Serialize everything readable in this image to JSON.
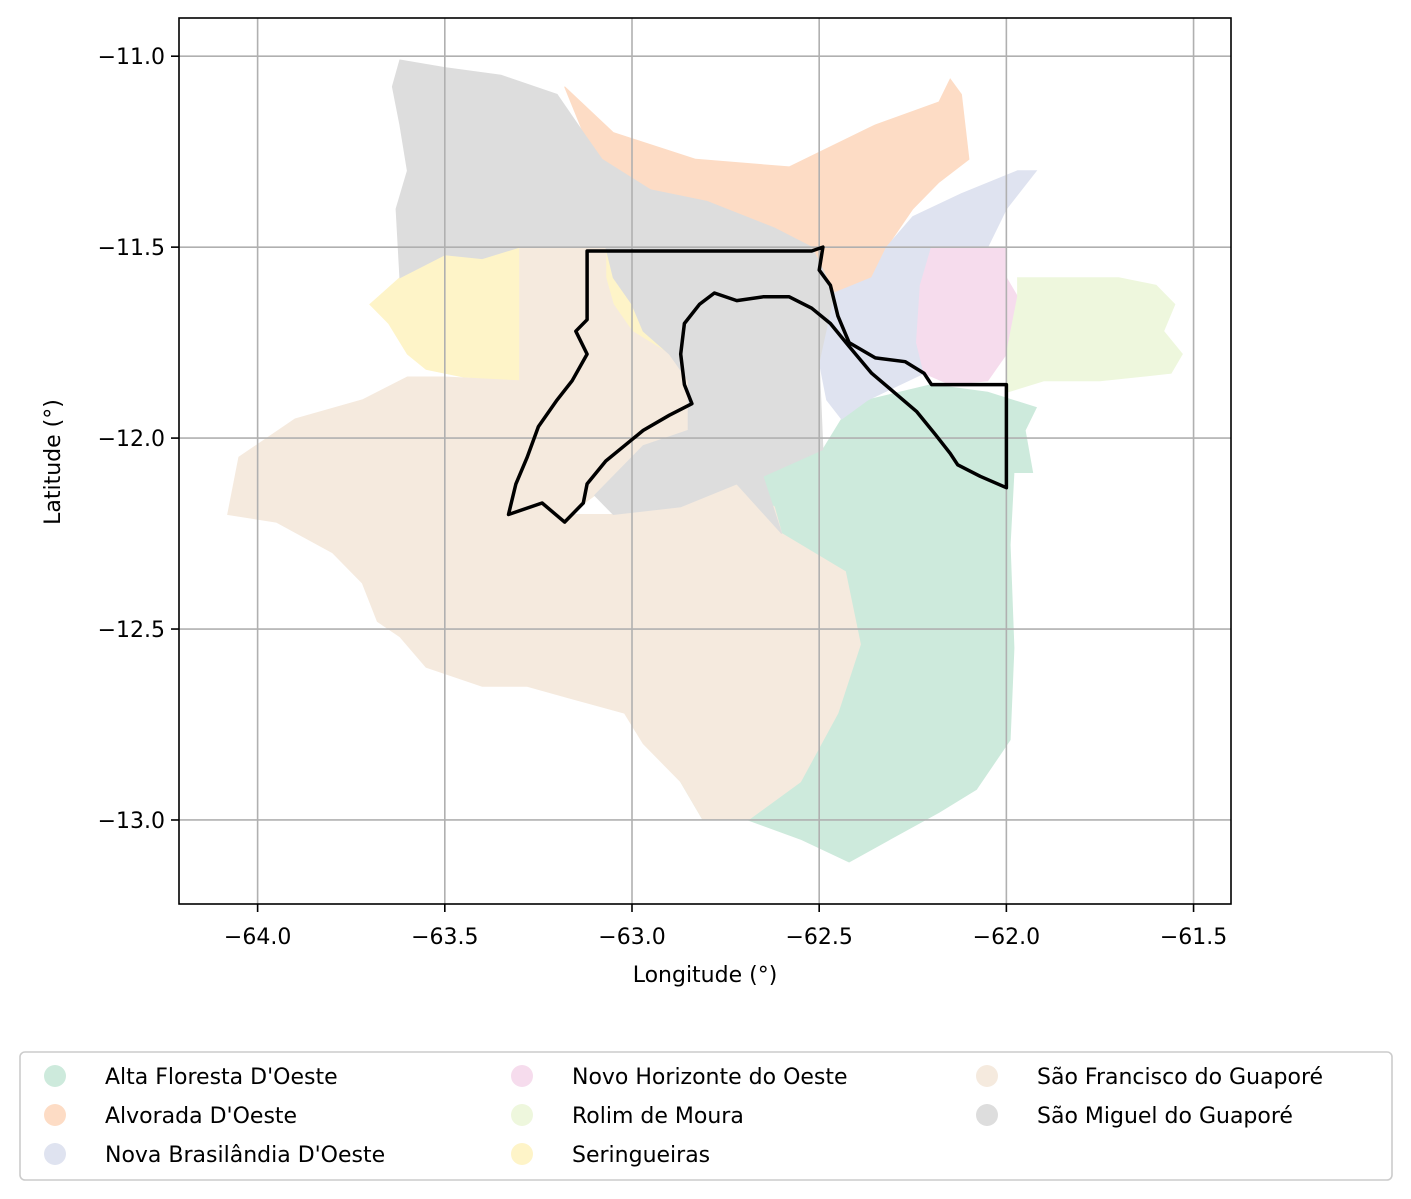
{
  "map": {
    "xlabel": "Longitude (°)",
    "ylabel": "Latitude (°)",
    "xlim": [
      -64.21,
      -61.4
    ],
    "ylim": [
      -13.22,
      -10.9
    ],
    "x_ticks": [
      -64.0,
      -63.5,
      -63.0,
      -62.5,
      -62.0,
      -61.5
    ],
    "x_tick_labels": [
      "−64.0",
      "−63.5",
      "−63.0",
      "−62.5",
      "−62.0",
      "−61.5"
    ],
    "y_ticks": [
      -11.0,
      -11.5,
      -12.0,
      -12.5,
      -13.0
    ],
    "y_tick_labels": [
      "−11.0",
      "−11.5",
      "−12.0",
      "−12.5",
      "−13.0"
    ],
    "grid": true,
    "legend_position": "bottom, below plot, 3 columns",
    "regions": [
      {
        "name": "Alta Floresta D'Oeste",
        "color": "#cdeadc",
        "boundary": [
          [
            -62.37,
            -11.9
          ],
          [
            -62.2,
            -11.86
          ],
          [
            -62.05,
            -11.88
          ],
          [
            -61.92,
            -11.92
          ],
          [
            -61.95,
            -11.98
          ],
          [
            -61.93,
            -12.09
          ],
          [
            -61.98,
            -12.09
          ],
          [
            -61.99,
            -12.28
          ],
          [
            -61.98,
            -12.55
          ],
          [
            -61.99,
            -12.79
          ],
          [
            -62.08,
            -12.92
          ],
          [
            -62.18,
            -12.98
          ],
          [
            -62.31,
            -13.05
          ],
          [
            -62.42,
            -13.11
          ],
          [
            -62.55,
            -13.05
          ],
          [
            -62.69,
            -13.0
          ],
          [
            -62.81,
            -13.0
          ],
          [
            -62.87,
            -12.9
          ],
          [
            -62.8,
            -12.85
          ],
          [
            -62.68,
            -12.8
          ],
          [
            -62.55,
            -12.72
          ],
          [
            -62.45,
            -12.65
          ],
          [
            -62.39,
            -12.54
          ],
          [
            -62.43,
            -12.35
          ],
          [
            -62.6,
            -12.25
          ],
          [
            -62.65,
            -12.1
          ],
          [
            -62.49,
            -12.03
          ],
          [
            -62.44,
            -11.95
          ]
        ]
      },
      {
        "name": "Alvorada D'Oeste",
        "color": "#fddcc5",
        "boundary": [
          [
            -63.18,
            -11.08
          ],
          [
            -63.05,
            -11.2
          ],
          [
            -62.83,
            -11.27
          ],
          [
            -62.58,
            -11.29
          ],
          [
            -62.35,
            -11.18
          ],
          [
            -62.18,
            -11.12
          ],
          [
            -62.15,
            -11.06
          ],
          [
            -62.12,
            -11.1
          ],
          [
            -62.1,
            -11.27
          ],
          [
            -62.18,
            -11.33
          ],
          [
            -62.25,
            -11.4
          ],
          [
            -62.32,
            -11.5
          ],
          [
            -62.36,
            -11.58
          ],
          [
            -62.46,
            -11.62
          ],
          [
            -62.52,
            -11.5
          ],
          [
            -62.62,
            -11.45
          ],
          [
            -62.8,
            -11.38
          ],
          [
            -62.95,
            -11.35
          ],
          [
            -63.08,
            -11.27
          ],
          [
            -63.13,
            -11.2
          ]
        ]
      },
      {
        "name": "Nova Brasilândia D'Oeste",
        "color": "#dfe3f0",
        "boundary": [
          [
            -62.46,
            -11.62
          ],
          [
            -62.36,
            -11.58
          ],
          [
            -62.32,
            -11.5
          ],
          [
            -62.25,
            -11.42
          ],
          [
            -62.12,
            -11.36
          ],
          [
            -61.97,
            -11.3
          ],
          [
            -61.92,
            -11.3
          ],
          [
            -62.0,
            -11.4
          ],
          [
            -62.05,
            -11.5
          ],
          [
            -62.2,
            -11.5
          ],
          [
            -62.23,
            -11.6
          ],
          [
            -62.2,
            -11.7
          ],
          [
            -62.24,
            -11.75
          ],
          [
            -62.22,
            -11.83
          ],
          [
            -62.37,
            -11.9
          ],
          [
            -62.44,
            -11.95
          ],
          [
            -62.48,
            -11.9
          ],
          [
            -62.5,
            -11.8
          ],
          [
            -62.52,
            -11.7
          ]
        ]
      },
      {
        "name": "Novo Horizonte do Oeste",
        "color": "#f6dced",
        "boundary": [
          [
            -62.2,
            -11.5
          ],
          [
            -62.0,
            -11.5
          ],
          [
            -62.0,
            -11.58
          ],
          [
            -61.97,
            -11.63
          ],
          [
            -62.0,
            -11.78
          ],
          [
            -62.05,
            -11.85
          ],
          [
            -62.15,
            -11.86
          ],
          [
            -62.22,
            -11.83
          ],
          [
            -62.24,
            -11.75
          ],
          [
            -62.23,
            -11.6
          ]
        ]
      },
      {
        "name": "Rolim de Moura",
        "color": "#eef7dd",
        "boundary": [
          [
            -61.97,
            -11.58
          ],
          [
            -61.7,
            -11.58
          ],
          [
            -61.6,
            -11.6
          ],
          [
            -61.55,
            -11.65
          ],
          [
            -61.58,
            -11.72
          ],
          [
            -61.53,
            -11.78
          ],
          [
            -61.56,
            -11.83
          ],
          [
            -61.75,
            -11.85
          ],
          [
            -61.9,
            -11.85
          ],
          [
            -62.0,
            -11.88
          ],
          [
            -62.0,
            -11.78
          ],
          [
            -61.97,
            -11.63
          ]
        ]
      },
      {
        "name": "Seringueiras",
        "color": "#fef4c8",
        "boundary": [
          [
            -63.2,
            -11.5
          ],
          [
            -63.07,
            -11.5
          ],
          [
            -63.05,
            -11.58
          ],
          [
            -63.0,
            -11.65
          ],
          [
            -62.97,
            -11.72
          ],
          [
            -62.9,
            -11.78
          ],
          [
            -62.85,
            -11.85
          ],
          [
            -62.85,
            -11.98
          ],
          [
            -62.97,
            -12.02
          ],
          [
            -63.1,
            -12.15
          ],
          [
            -63.17,
            -12.2
          ],
          [
            -63.24,
            -12.25
          ],
          [
            -63.3,
            -12.3
          ],
          [
            -63.33,
            -12.25
          ],
          [
            -63.3,
            -12.15
          ],
          [
            -63.28,
            -12.05
          ],
          [
            -63.3,
            -11.85
          ],
          [
            -63.45,
            -11.84
          ],
          [
            -63.55,
            -11.82
          ],
          [
            -63.6,
            -11.78
          ],
          [
            -63.65,
            -11.7
          ],
          [
            -63.7,
            -11.65
          ],
          [
            -63.62,
            -11.58
          ],
          [
            -63.5,
            -11.52
          ],
          [
            -63.4,
            -11.53
          ],
          [
            -63.3,
            -11.5
          ]
        ]
      },
      {
        "name": "São Francisco do Guaporé",
        "color": "#f5eade",
        "boundary": [
          [
            -63.3,
            -11.85
          ],
          [
            -63.5,
            -11.84
          ],
          [
            -63.6,
            -11.84
          ],
          [
            -63.72,
            -11.9
          ],
          [
            -63.9,
            -11.95
          ],
          [
            -64.05,
            -12.05
          ],
          [
            -64.08,
            -12.2
          ],
          [
            -63.95,
            -12.22
          ],
          [
            -63.8,
            -12.3
          ],
          [
            -63.72,
            -12.38
          ],
          [
            -63.68,
            -12.48
          ],
          [
            -63.62,
            -12.52
          ],
          [
            -63.55,
            -12.6
          ],
          [
            -63.4,
            -12.65
          ],
          [
            -63.28,
            -12.65
          ],
          [
            -63.17,
            -12.68
          ],
          [
            -63.02,
            -12.72
          ],
          [
            -62.97,
            -12.8
          ],
          [
            -62.87,
            -12.9
          ],
          [
            -62.81,
            -13.0
          ],
          [
            -62.69,
            -13.0
          ],
          [
            -62.55,
            -12.9
          ],
          [
            -62.45,
            -12.72
          ],
          [
            -62.39,
            -12.54
          ],
          [
            -62.43,
            -12.35
          ],
          [
            -62.6,
            -12.25
          ],
          [
            -62.62,
            -12.18
          ],
          [
            -62.72,
            -12.12
          ],
          [
            -62.87,
            -12.18
          ],
          [
            -63.05,
            -12.2
          ],
          [
            -63.17,
            -12.2
          ],
          [
            -63.1,
            -12.15
          ],
          [
            -62.97,
            -12.02
          ],
          [
            -62.85,
            -11.98
          ],
          [
            -62.85,
            -11.85
          ],
          [
            -62.9,
            -11.78
          ],
          [
            -63.0,
            -11.72
          ],
          [
            -63.05,
            -11.65
          ],
          [
            -63.07,
            -11.58
          ],
          [
            -63.07,
            -11.5
          ],
          [
            -63.2,
            -11.5
          ],
          [
            -63.3,
            -11.5
          ],
          [
            -63.3,
            -11.85
          ]
        ]
      },
      {
        "name": "São Miguel do Guaporé",
        "color": "#dddddd",
        "boundary": [
          [
            -63.62,
            -11.01
          ],
          [
            -63.5,
            -11.03
          ],
          [
            -63.35,
            -11.05
          ],
          [
            -63.2,
            -11.1
          ],
          [
            -63.13,
            -11.2
          ],
          [
            -63.08,
            -11.27
          ],
          [
            -62.95,
            -11.35
          ],
          [
            -62.8,
            -11.38
          ],
          [
            -62.62,
            -11.45
          ],
          [
            -62.52,
            -11.5
          ],
          [
            -62.46,
            -11.62
          ],
          [
            -62.5,
            -11.8
          ],
          [
            -62.49,
            -12.03
          ],
          [
            -62.65,
            -12.1
          ],
          [
            -62.6,
            -12.25
          ],
          [
            -62.72,
            -12.12
          ],
          [
            -62.87,
            -12.18
          ],
          [
            -63.05,
            -12.2
          ],
          [
            -63.1,
            -12.15
          ],
          [
            -62.97,
            -12.02
          ],
          [
            -62.85,
            -11.98
          ],
          [
            -62.85,
            -11.85
          ],
          [
            -62.9,
            -11.78
          ],
          [
            -62.97,
            -11.72
          ],
          [
            -63.0,
            -11.65
          ],
          [
            -63.05,
            -11.58
          ],
          [
            -63.07,
            -11.5
          ],
          [
            -63.2,
            -11.5
          ],
          [
            -63.3,
            -11.5
          ],
          [
            -63.4,
            -11.53
          ],
          [
            -63.5,
            -11.52
          ],
          [
            -63.62,
            -11.58
          ],
          [
            -63.63,
            -11.4
          ],
          [
            -63.6,
            -11.3
          ],
          [
            -63.62,
            -11.18
          ],
          [
            -63.64,
            -11.08
          ]
        ]
      }
    ],
    "highlight_outline": {
      "color": "#000000",
      "boundary": [
        [
          -63.12,
          -11.51
        ],
        [
          -62.52,
          -11.51
        ],
        [
          -62.49,
          -11.5
        ],
        [
          -62.5,
          -11.56
        ],
        [
          -62.47,
          -11.6
        ],
        [
          -62.45,
          -11.68
        ],
        [
          -62.42,
          -11.75
        ],
        [
          -62.35,
          -11.79
        ],
        [
          -62.27,
          -11.8
        ],
        [
          -62.22,
          -11.83
        ],
        [
          -62.2,
          -11.86
        ],
        [
          -62.0,
          -11.86
        ],
        [
          -62.0,
          -12.13
        ],
        [
          -62.07,
          -12.1
        ],
        [
          -62.13,
          -12.07
        ],
        [
          -62.15,
          -12.04
        ],
        [
          -62.19,
          -11.99
        ],
        [
          -62.24,
          -11.93
        ],
        [
          -62.3,
          -11.88
        ],
        [
          -62.36,
          -11.83
        ],
        [
          -62.42,
          -11.76
        ],
        [
          -62.47,
          -11.7
        ],
        [
          -62.52,
          -11.66
        ],
        [
          -62.58,
          -11.63
        ],
        [
          -62.65,
          -11.63
        ],
        [
          -62.72,
          -11.64
        ],
        [
          -62.78,
          -11.62
        ],
        [
          -62.82,
          -11.65
        ],
        [
          -62.86,
          -11.7
        ],
        [
          -62.87,
          -11.78
        ],
        [
          -62.86,
          -11.86
        ],
        [
          -62.84,
          -11.91
        ],
        [
          -62.9,
          -11.94
        ],
        [
          -62.97,
          -11.98
        ],
        [
          -63.02,
          -12.02
        ],
        [
          -63.07,
          -12.06
        ],
        [
          -63.12,
          -12.12
        ],
        [
          -63.13,
          -12.17
        ],
        [
          -63.18,
          -12.22
        ],
        [
          -63.24,
          -12.17
        ],
        [
          -63.33,
          -12.2
        ],
        [
          -63.31,
          -12.12
        ],
        [
          -63.28,
          -12.05
        ],
        [
          -63.25,
          -11.97
        ],
        [
          -63.2,
          -11.9
        ],
        [
          -63.16,
          -11.85
        ],
        [
          -63.12,
          -11.78
        ],
        [
          -63.15,
          -11.72
        ],
        [
          -63.12,
          -11.69
        ],
        [
          -63.12,
          -11.6
        ],
        [
          -63.12,
          -11.51
        ]
      ]
    }
  },
  "legend": {
    "items": [
      {
        "label": "Alta Floresta D'Oeste",
        "color": "#cdeadc"
      },
      {
        "label": "Alvorada D'Oeste",
        "color": "#fddcc5"
      },
      {
        "label": "Nova Brasilândia D'Oeste",
        "color": "#dfe3f0"
      },
      {
        "label": "Novo Horizonte do Oeste",
        "color": "#f6dced"
      },
      {
        "label": "Rolim de Moura",
        "color": "#eef7dd"
      },
      {
        "label": "Seringueiras",
        "color": "#fef4c8"
      },
      {
        "label": "São Francisco do Guaporé",
        "color": "#f5eade"
      },
      {
        "label": "São Miguel do Guaporé",
        "color": "#dddddd"
      }
    ]
  }
}
